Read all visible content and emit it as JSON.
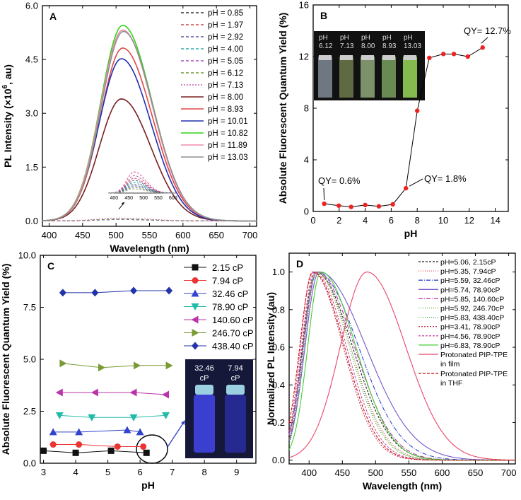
{
  "chart_data": [
    {
      "panel": "A",
      "type": "line",
      "xlabel": "Wavelength (nm)",
      "ylabel_parts": [
        "PL Intensity (×10",
        "6",
        ", au)"
      ],
      "xlim": [
        390,
        710
      ],
      "ylim": [
        -0.15,
        6.0
      ],
      "xticks": [
        400,
        450,
        500,
        550,
        600,
        650,
        700
      ],
      "yticks": [
        0.0,
        1.5,
        3.0,
        4.5,
        6.0
      ],
      "ytick_labels": [
        "0.0",
        "1.5",
        "3.0",
        "4.5",
        "6.0"
      ],
      "series": [
        {
          "name": "pH = 0.85",
          "color": "#333333",
          "dash": "4,3",
          "peak": 0.04,
          "center": 505
        },
        {
          "name": "pH = 1.97",
          "color": "#d04a4a",
          "dash": "4,3",
          "peak": 0.04,
          "center": 505
        },
        {
          "name": "pH = 2.92",
          "color": "#5a5a9a",
          "dash": "4,3",
          "peak": 0.04,
          "center": 505
        },
        {
          "name": "pH = 4.00",
          "color": "#2aa8a8",
          "dash": "4,3",
          "peak": 0.04,
          "center": 505
        },
        {
          "name": "pH = 5.05",
          "color": "#a050c0",
          "dash": "4,3",
          "peak": 0.04,
          "center": 505
        },
        {
          "name": "pH = 6.12",
          "color": "#6a9a3a",
          "dash": "4,3",
          "peak": 0.05,
          "center": 505
        },
        {
          "name": "pH = 7.13",
          "color": "#c060b0",
          "dash": "2,2",
          "peak": 0.08,
          "center": 505
        },
        {
          "name": "pH = 8.00",
          "color": "#7a1f1f",
          "dash": "",
          "peak": 3.4,
          "center": 508
        },
        {
          "name": "pH = 8.93",
          "color": "#e04848",
          "dash": "",
          "peak": 4.82,
          "center": 510
        },
        {
          "name": "pH = 10.01",
          "color": "#2030b0",
          "dash": "",
          "peak": 4.52,
          "center": 508
        },
        {
          "name": "pH = 10.82",
          "color": "#33d11a",
          "dash": "",
          "peak": 5.45,
          "center": 510
        },
        {
          "name": "pH = 11.89",
          "color": "#f08aa8",
          "dash": "",
          "peak": 5.32,
          "center": 510
        },
        {
          "name": "pH = 13.03",
          "color": "#909090",
          "dash": "",
          "peak": 5.28,
          "center": 511
        }
      ],
      "inset": {
        "xticks": [
          400,
          450,
          500,
          550,
          600
        ],
        "xlim": [
          380,
          610
        ],
        "peaks": [
          1.0,
          0.82,
          0.7,
          0.6,
          0.5,
          0.42,
          0.34,
          0.27,
          0.2
        ],
        "colors": [
          "#e04d86",
          "#b85cc0",
          "#d04a4a",
          "#5a5a9a",
          "#2aa8a8",
          "#7a7a7a",
          "#4a4ac0",
          "#6a9a3a",
          "#999999"
        ]
      }
    },
    {
      "panel": "B",
      "type": "line",
      "xlabel": "pH",
      "ylabel": "Absolute Fluorescent Quantum Yield (%)",
      "xlim": [
        0,
        15
      ],
      "ylim": [
        0,
        16
      ],
      "xticks": [
        0,
        2,
        4,
        6,
        8,
        10,
        12,
        14
      ],
      "yticks": [
        0,
        4,
        8,
        12,
        16
      ],
      "x": [
        0.85,
        1.97,
        2.92,
        4.0,
        5.05,
        6.12,
        7.13,
        8.0,
        8.93,
        10.01,
        10.82,
        11.89,
        13.03
      ],
      "y": [
        0.6,
        0.45,
        0.35,
        0.5,
        0.4,
        0.55,
        1.8,
        7.8,
        11.9,
        12.2,
        12.2,
        12.0,
        12.7
      ],
      "annotations": [
        {
          "text": "QY= 0.6%",
          "x": 0.85,
          "y": 0.6
        },
        {
          "text": "QY= 1.8%",
          "x": 7.13,
          "y": 1.8
        },
        {
          "text": "QY= 12.7%",
          "x": 13.03,
          "y": 12.7
        }
      ],
      "photo_labels": [
        {
          "ph": "pH",
          "value": "6.12",
          "liquid": "#7f8a96"
        },
        {
          "ph": "pH",
          "value": "7.13",
          "liquid": "#6c7a4a"
        },
        {
          "ph": "pH",
          "value": "8.00",
          "liquid": "#8fa87a"
        },
        {
          "ph": "pH",
          "value": "8.93",
          "liquid": "#7aa060"
        },
        {
          "ph": "pH",
          "value": "13.03",
          "liquid": "#9ad85a"
        }
      ]
    },
    {
      "panel": "C",
      "type": "line",
      "xlabel": "pH",
      "ylabel": "Absolute Fluorescent Quantum Yield (%)",
      "xlim": [
        2.9,
        9.6
      ],
      "ylim": [
        0,
        10
      ],
      "xticks": [
        3,
        4,
        5,
        6,
        7,
        8,
        9
      ],
      "yticks": [
        0.0,
        2.5,
        5.0,
        7.5,
        10.0
      ],
      "ytick_labels": [
        "0.0",
        "2.5",
        "5.0",
        "7.5",
        "10.0"
      ],
      "series": [
        {
          "name": "2.15 cP",
          "color": "#111111",
          "marker": "square",
          "x": [
            3.0,
            4.0,
            5.1,
            6.2
          ],
          "y": [
            0.6,
            0.5,
            0.6,
            0.5
          ]
        },
        {
          "name": "7.94 cP",
          "color": "#ee3333",
          "marker": "circle",
          "x": [
            3.3,
            4.1,
            5.3,
            6.1
          ],
          "y": [
            0.9,
            0.9,
            0.8,
            0.8
          ]
        },
        {
          "name": "32.46 cP",
          "color": "#3344cc",
          "marker": "triangle-up",
          "x": [
            3.3,
            4.1,
            5.6,
            6.0
          ],
          "y": [
            1.5,
            1.5,
            1.6,
            1.5
          ]
        },
        {
          "name": "78.90 cP",
          "color": "#22bbaa",
          "marker": "triangle-down",
          "x": [
            3.5,
            4.5,
            5.8,
            6.8
          ],
          "y": [
            2.3,
            2.2,
            2.2,
            2.3
          ]
        },
        {
          "name": "140.60 cP",
          "color": "#bb33aa",
          "marker": "triangle-left",
          "x": [
            3.5,
            4.6,
            5.8,
            6.8
          ],
          "y": [
            3.4,
            3.4,
            3.4,
            3.3
          ]
        },
        {
          "name": "246.70 cP",
          "color": "#7a9a33",
          "marker": "triangle-right",
          "x": [
            3.6,
            4.8,
            5.9,
            6.9
          ],
          "y": [
            4.8,
            4.6,
            4.7,
            4.7
          ]
        },
        {
          "name": "438.40 cP",
          "color": "#2233aa",
          "marker": "diamond",
          "x": [
            3.6,
            4.6,
            5.8,
            6.9
          ],
          "y": [
            8.2,
            8.2,
            8.3,
            8.3
          ]
        }
      ],
      "photo_labels": [
        {
          "value": "32.46",
          "unit": "cP"
        },
        {
          "value": "7.94",
          "unit": "cP"
        }
      ]
    },
    {
      "panel": "D",
      "type": "line",
      "xlabel": "Wavelength (nm)",
      "ylabel": "Normalized PL Intensity (au)",
      "xlim": [
        370,
        710
      ],
      "ylim": [
        -0.02,
        1.1
      ],
      "xticks": [
        400,
        450,
        500,
        550,
        600,
        650,
        700
      ],
      "yticks": [
        0.0,
        0.2,
        0.4,
        0.6,
        0.8,
        1.0
      ],
      "ytick_labels": [
        "0.0",
        "0.2",
        "0.4",
        "0.6",
        "0.8",
        "1.0"
      ],
      "series": [
        {
          "name": "pH=5.06, 2.15cP",
          "color": "#222222",
          "dash": "3,2",
          "peak": 410,
          "sl": 20,
          "sr": 55
        },
        {
          "name": "pH=5.35, 7.94cP",
          "color": "#ee5555",
          "dash": "1,2",
          "peak": 410,
          "sl": 20,
          "sr": 52
        },
        {
          "name": "pH=5.59, 32.46cP",
          "color": "#3344cc",
          "dash": "6,2,1,2",
          "peak": 412,
          "sl": 21,
          "sr": 62
        },
        {
          "name": "pH=5.74, 78.90cP",
          "color": "#7755cc",
          "dash": "",
          "peak": 415,
          "sl": 21,
          "sr": 70
        },
        {
          "name": "pH=5.85, 140.60cP",
          "color": "#bb33aa",
          "dash": "6,2,1,2",
          "peak": 412,
          "sl": 20,
          "sr": 56
        },
        {
          "name": "pH=5.92, 246.70cP",
          "color": "#66aa33",
          "dash": "1,2",
          "peak": 410,
          "sl": 19,
          "sr": 50
        },
        {
          "name": "pH=5.83, 438.40cP",
          "color": "#33aa33",
          "dash": "1,2",
          "peak": 412,
          "sl": 19,
          "sr": 50
        },
        {
          "name": "pH=3.41, 78.90cP",
          "color": "#cc3355",
          "dash": "2,2",
          "peak": 405,
          "sl": 18,
          "sr": 46
        },
        {
          "name": "pH=4.56, 78.90cP",
          "color": "#cc55aa",
          "dash": "3,2",
          "peak": 408,
          "sl": 19,
          "sr": 48
        },
        {
          "name": "pH=6.83, 78.90cP",
          "color": "#44cc33",
          "dash": "",
          "peak": 418,
          "sl": 20,
          "sr": 52
        },
        {
          "name": "Protonated PIP-TPE in film",
          "name_lines": [
            "Protonated PIP-TPE",
            "in film"
          ],
          "color": "#e8456a",
          "dash": "",
          "peak": 487,
          "sl": 40,
          "sr": 58
        },
        {
          "name": "Protonated PIP-TPE in THF",
          "name_lines": [
            "Protonated PIP-TPE",
            "in THF"
          ],
          "color": "#cc1111",
          "dash": "4,2",
          "peak": 406,
          "sl": 20,
          "sr": 47
        }
      ]
    }
  ]
}
